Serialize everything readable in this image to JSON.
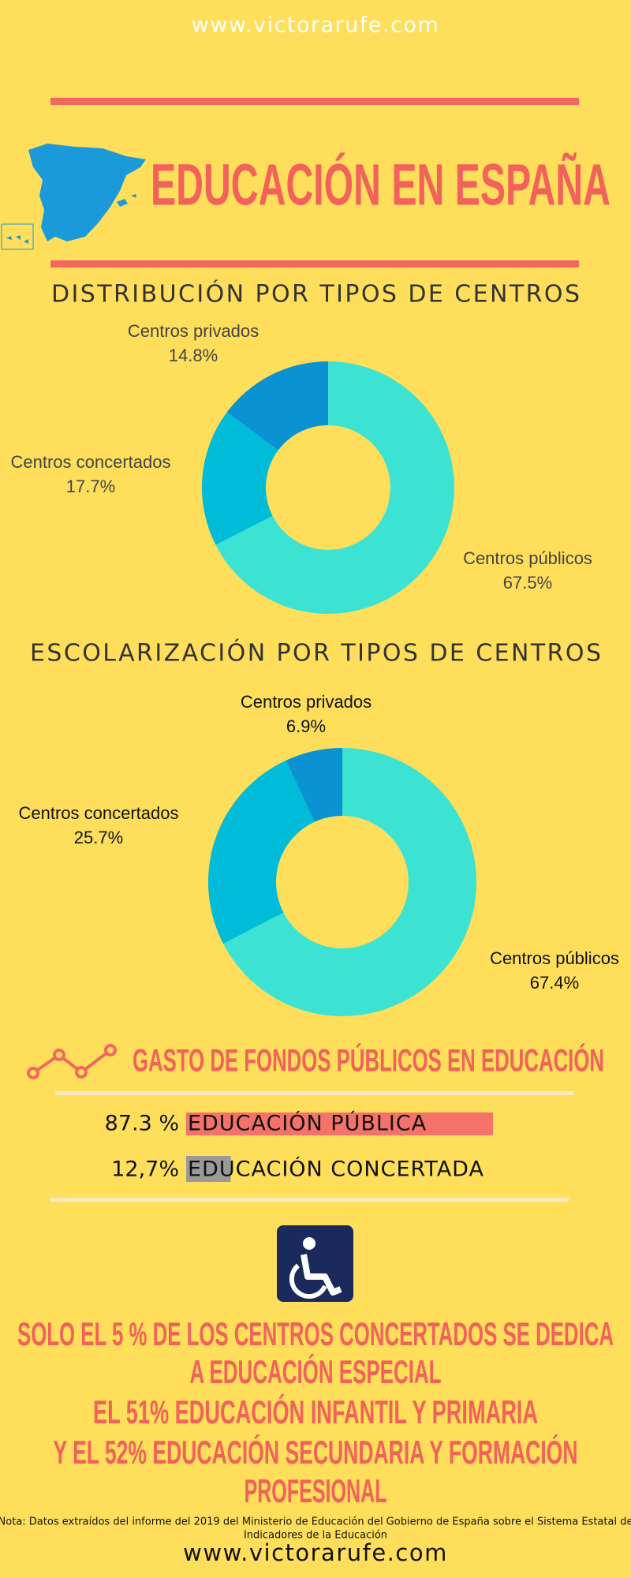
{
  "header": {
    "url": "www.victorarufe.com",
    "title": "EDUCACIÓN EN ESPAÑA"
  },
  "chart_data": [
    {
      "type": "pie",
      "donut": true,
      "title": "DISTRIBUCIÓN POR TIPOS DE CENTROS",
      "categories": [
        "Centros públicos",
        "Centros concertados",
        "Centros privados"
      ],
      "values": [
        67.5,
        17.7,
        14.8
      ],
      "value_labels": [
        "67.5%",
        "17.7%",
        "14.8%"
      ],
      "colors": [
        "#3de3d2",
        "#00bcd9",
        "#0a92d2"
      ]
    },
    {
      "type": "pie",
      "donut": true,
      "title": "ESCOLARIZACIÓN POR TIPOS DE CENTROS",
      "categories": [
        "Centros públicos",
        "Centros concertados",
        "Centros privados"
      ],
      "values": [
        67.4,
        25.7,
        6.9
      ],
      "value_labels": [
        "67.4%",
        "25.7%",
        "6.9%"
      ],
      "colors": [
        "#3de3d2",
        "#00bcd9",
        "#0a92d2"
      ]
    },
    {
      "type": "bar",
      "orientation": "horizontal",
      "title": "GASTO DE FONDOS PÚBLICOS EN EDUCACIÓN",
      "categories": [
        "EDUCACIÓN PÚBLICA",
        "EDUCACIÓN CONCERTADA"
      ],
      "values": [
        87.3,
        12.7
      ],
      "value_labels": [
        "87.3 %",
        "12,7%"
      ],
      "colors": [
        "#f4726a",
        "#9a9a9a"
      ]
    }
  ],
  "highlight": {
    "lines": [
      "SOLO EL 5 % DE LOS CENTROS CONCERTADOS SE DEDICA",
      "A EDUCACIÓN ESPECIAL",
      "EL 51% EDUCACIÓN INFANTIL Y PRIMARIA",
      "Y EL 52% EDUCACIÓN SECUNDARIA Y FORMACIÓN",
      "PROFESIONAL"
    ]
  },
  "footer": {
    "note": [
      "Nota: Datos extraídos del informe del 2019 del Ministerio de Educación del Gobierno de España sobre el Sistema Estatal de",
      "Indicadores de la Educación"
    ],
    "url": "www.victorarufe.com"
  }
}
